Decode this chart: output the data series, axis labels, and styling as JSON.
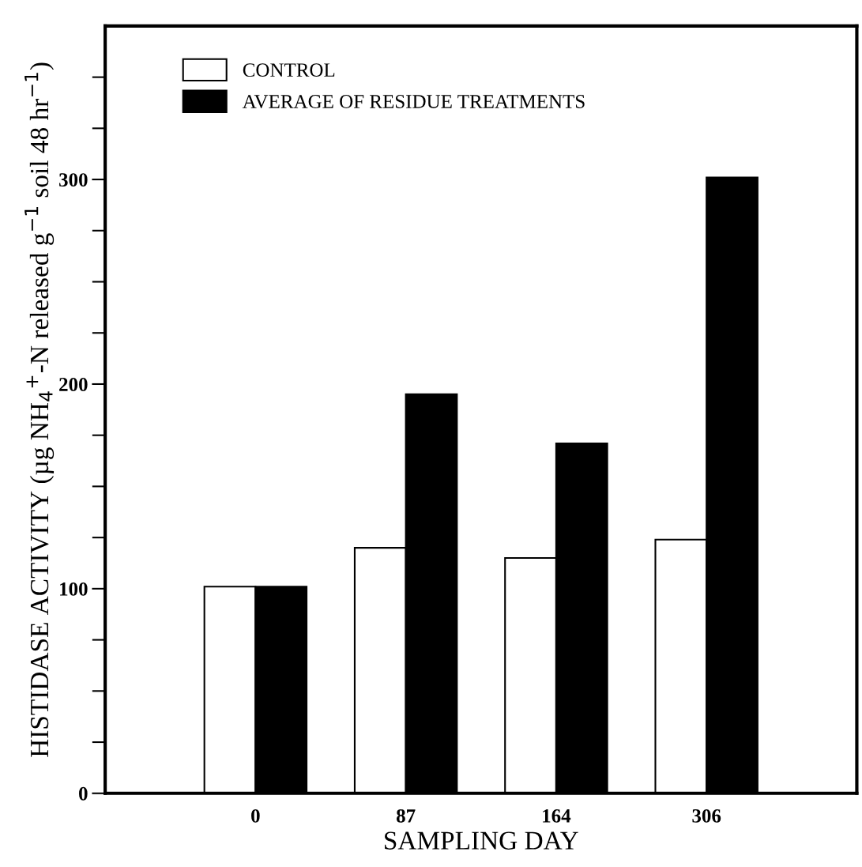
{
  "chart_data": {
    "type": "bar",
    "xlabel": "SAMPLING DAY",
    "ylabel": "HISTIDASE ACTIVITY (µg NH$_{4}$$^{+}$-N released g$^{−1}$ soil 48 hr$^{−1}$)",
    "categories": [
      "0",
      "87",
      "164",
      "306"
    ],
    "series": [
      {
        "name": "CONTROL",
        "color": "#ffffff",
        "values": [
          101,
          120,
          115,
          124
        ]
      },
      {
        "name": "AVERAGE OF RESIDUE TREATMENTS",
        "color": "#000000",
        "values": [
          101,
          195,
          171,
          301
        ]
      }
    ],
    "ylim": [
      0,
      375
    ],
    "yticks": [
      0,
      {
        "value": 25,
        "label": null
      },
      {
        "value": 50,
        "label": null
      },
      {
        "value": 75,
        "label": null
      },
      100,
      {
        "value": 125,
        "label": null
      },
      {
        "value": 150,
        "label": null
      },
      {
        "value": 175,
        "label": null
      },
      200,
      {
        "value": 225,
        "label": null
      },
      {
        "value": 250,
        "label": null
      },
      {
        "value": 275,
        "label": null
      },
      300,
      {
        "value": 325,
        "label": null
      },
      {
        "value": 350,
        "label": null
      }
    ],
    "grid": false,
    "legend": "top left"
  }
}
